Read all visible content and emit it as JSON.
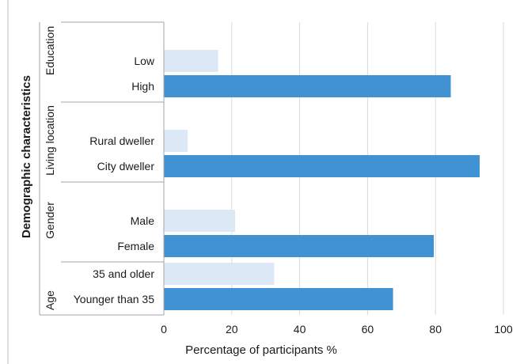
{
  "chart_data": {
    "type": "bar",
    "orientation": "horizontal",
    "xlabel": "Percentage of participants %",
    "ylabel": "Demographic characteristics",
    "xlim": [
      0,
      100
    ],
    "xticks": [
      0,
      20,
      40,
      60,
      80,
      100
    ],
    "grid": true,
    "colors": {
      "light": "#dce8f6",
      "dark": "#4192d3"
    },
    "groups": [
      {
        "name": "Education",
        "bars": [
          {
            "label": "Low",
            "value": 16,
            "shade": "light"
          },
          {
            "label": "High",
            "value": 84.5,
            "shade": "dark"
          }
        ]
      },
      {
        "name": "Living location",
        "bars": [
          {
            "label": "Rural dweller",
            "value": 7,
            "shade": "light"
          },
          {
            "label": "City dweller",
            "value": 93,
            "shade": "dark"
          }
        ]
      },
      {
        "name": "Gender",
        "bars": [
          {
            "label": "Male",
            "value": 21,
            "shade": "light"
          },
          {
            "label": "Female",
            "value": 79.5,
            "shade": "dark"
          }
        ]
      },
      {
        "name": "Age",
        "bars": [
          {
            "label": "35 and older",
            "value": 32.5,
            "shade": "light"
          },
          {
            "label": "Younger than 35",
            "value": 67.5,
            "shade": "dark"
          }
        ]
      }
    ]
  }
}
